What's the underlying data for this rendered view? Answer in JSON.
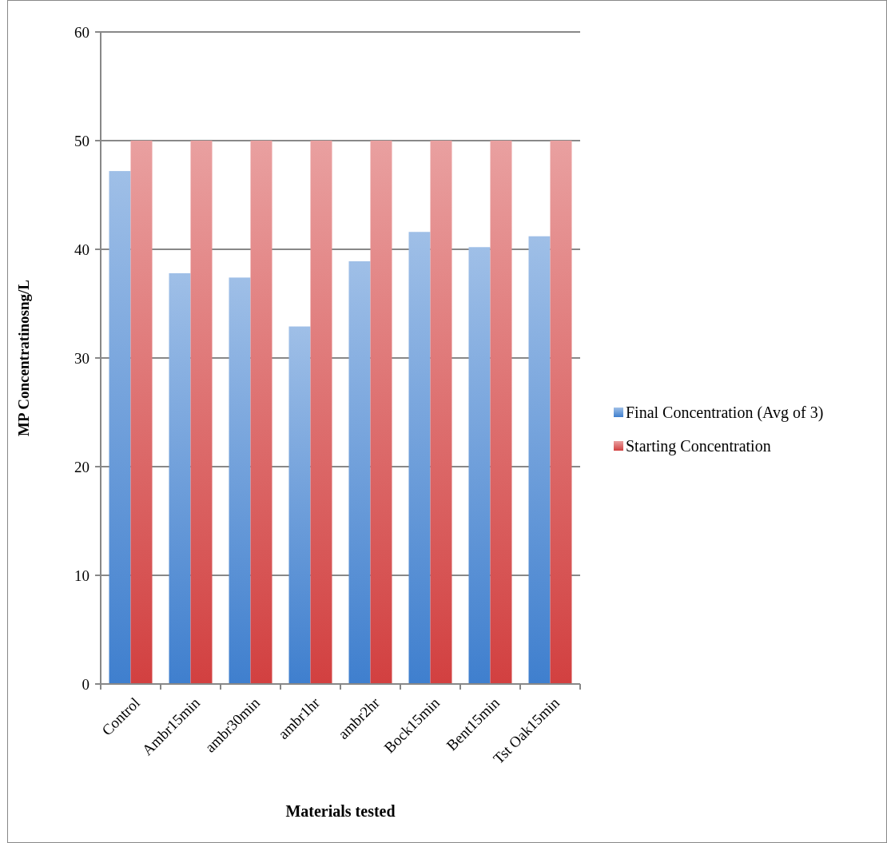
{
  "chart_data": {
    "type": "bar",
    "xlabel": "Materials tested",
    "ylabel": "MP Concentratinosng/L",
    "categories": [
      "Control",
      "Ambr15min",
      "ambr30min",
      "ambr1hr",
      "ambr2hr",
      "Bock15min",
      "Bent15min",
      "Tst Oak15min"
    ],
    "series": [
      {
        "name": "Final Concentration (Avg of 3)",
        "color": "#3f7fce",
        "values": [
          47.2,
          37.8,
          37.4,
          32.9,
          38.9,
          41.6,
          40.2,
          41.2
        ]
      },
      {
        "name": "Starting Concentration",
        "color": "#d24040",
        "values": [
          50,
          50,
          50,
          50,
          50,
          50,
          50,
          50
        ]
      }
    ],
    "ylim": [
      0,
      60
    ],
    "yticks": [
      0,
      10,
      20,
      30,
      40,
      50,
      60
    ],
    "grid": "y",
    "legend": "right"
  }
}
